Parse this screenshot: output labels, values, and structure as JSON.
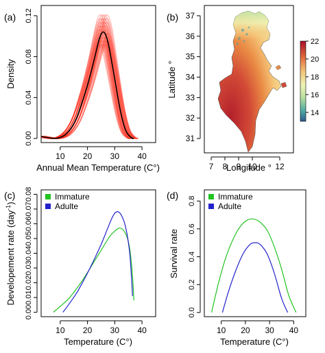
{
  "panels": [
    {
      "tag": "(a)",
      "xlabel": "Annual Mean Temperature (C°)",
      "ylabel": "Density",
      "xticks": [
        10,
        20,
        30,
        40
      ],
      "yticks": [
        "0.00",
        "0.04",
        "0.08",
        "0.12"
      ]
    },
    {
      "tag": "(b)",
      "xlabel": "Longitude °",
      "ylabel": "Latitude °",
      "xticks": [
        "7",
        "8",
        "9",
        "10",
        "12"
      ],
      "yticks": [
        "31",
        "32",
        "33",
        "34",
        "35",
        "36",
        "37"
      ],
      "colorbar_ticks": [
        "14",
        "16",
        "18",
        "20",
        "22"
      ]
    },
    {
      "tag": "(c)",
      "xlabel": "Temperature (C°)",
      "ylabel": "Developement rate (day",
      "ylabel_sup": "-1",
      "ylabel_end": ")",
      "xticks": [
        10,
        20,
        30,
        40
      ],
      "yticks": [
        "0.00",
        "0.01",
        "0.02",
        "0.03",
        "0.04",
        "0.05",
        "0.06",
        "0.07",
        "0.08"
      ],
      "legend": [
        "Immature",
        "Adulte"
      ]
    },
    {
      "tag": "(d)",
      "xlabel": "Temperature (C°)",
      "ylabel": "Survival rate",
      "xticks": [
        10,
        20,
        30,
        40
      ],
      "yticks": [
        "0.0",
        "0.2",
        "0.4",
        "0.6",
        "0.8"
      ],
      "legend": [
        "Immature",
        "Adulte"
      ]
    }
  ],
  "colors": {
    "immature": "#22c322",
    "adulte": "#2222cc",
    "density_mean": "#000000",
    "density_ensemble": "#ff2a1a"
  },
  "chart_data": [
    {
      "type": "line",
      "xlabel": "Annual Mean Temperature (C°)",
      "ylabel": "Density",
      "xlim": [
        3,
        45
      ],
      "ylim": [
        -0.004,
        0.13
      ],
      "series": [
        {
          "x": [
            3,
            5,
            8,
            10,
            12,
            14,
            16,
            18,
            20,
            22,
            24,
            25,
            26,
            27,
            28,
            30,
            32,
            34,
            36,
            37
          ],
          "values": [
            0.002,
            0.001,
            0.0,
            0.001,
            0.004,
            0.01,
            0.02,
            0.035,
            0.052,
            0.072,
            0.094,
            0.102,
            0.104,
            0.099,
            0.088,
            0.058,
            0.028,
            0.008,
            0.001,
            0.0
          ]
        }
      ]
    },
    {
      "type": "heatmap",
      "xlabel": "Longitude °",
      "ylabel": "Latitude °",
      "xlim": [
        6.5,
        13
      ],
      "ylim": [
        30.3,
        37.5
      ],
      "colorbar_range": [
        13,
        22
      ]
    },
    {
      "type": "line",
      "xlabel": "Temperature (C°)",
      "ylabel": "Developement rate (day-1)",
      "xlim": [
        3,
        45
      ],
      "ylim": [
        -0.003,
        0.083
      ],
      "series": [
        {
          "name": "Immature",
          "x": [
            7.5,
            10,
            13,
            16,
            19,
            22,
            25,
            28,
            30,
            31.5,
            33,
            34.5,
            35.5,
            36.5,
            37
          ],
          "values": [
            0.0,
            0.004,
            0.009,
            0.016,
            0.024,
            0.033,
            0.042,
            0.051,
            0.055,
            0.057,
            0.056,
            0.051,
            0.043,
            0.025,
            0.008
          ]
        },
        {
          "name": "Adulte",
          "x": [
            11,
            13,
            16,
            19,
            22,
            25,
            27,
            29,
            30.5,
            32,
            33.5,
            34.5,
            35.5,
            36.2,
            36.5
          ],
          "values": [
            0.0,
            0.005,
            0.013,
            0.023,
            0.034,
            0.046,
            0.055,
            0.064,
            0.068,
            0.067,
            0.061,
            0.053,
            0.04,
            0.022,
            0.011
          ]
        }
      ]
    },
    {
      "type": "line",
      "xlabel": "Temperature (C°)",
      "ylabel": "Survival rate",
      "xlim": [
        3,
        45
      ],
      "ylim": [
        -0.03,
        0.88
      ],
      "series": [
        {
          "name": "Immature",
          "x": [
            6,
            9,
            12,
            15,
            18,
            21,
            23.5,
            26,
            29,
            32,
            35,
            38,
            41
          ],
          "values": [
            0.0,
            0.22,
            0.4,
            0.53,
            0.62,
            0.665,
            0.67,
            0.65,
            0.59,
            0.47,
            0.31,
            0.12,
            0.0
          ]
        },
        {
          "name": "Adulte",
          "x": [
            10.5,
            13,
            16,
            19,
            22,
            24,
            26,
            29,
            32,
            35,
            37.5
          ],
          "values": [
            0.0,
            0.15,
            0.3,
            0.42,
            0.49,
            0.5,
            0.49,
            0.42,
            0.28,
            0.1,
            0.0
          ]
        }
      ]
    }
  ]
}
